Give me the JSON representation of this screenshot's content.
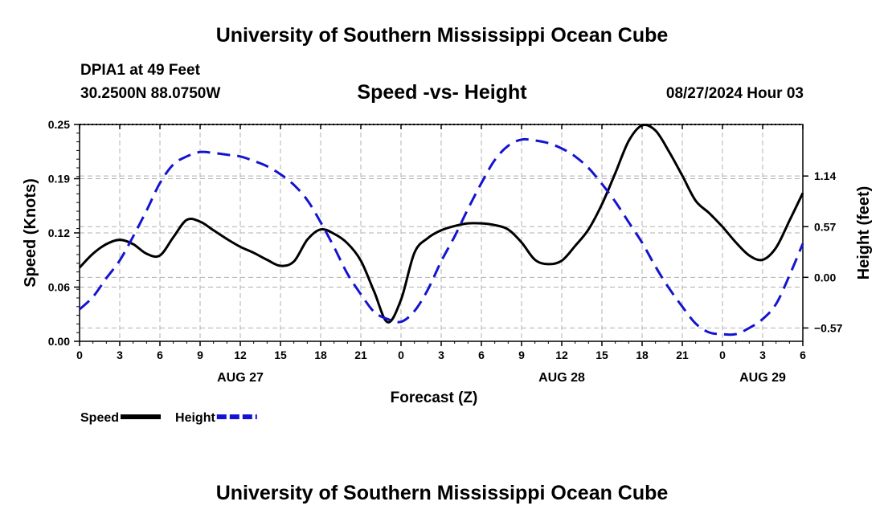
{
  "header": {
    "title_top": "University of Southern Mississippi Ocean Cube",
    "station": "DPIA1 at 49 Feet",
    "coords": "30.2500N  88.0750W",
    "subtitle": "Speed -vs- Height",
    "datetime": "08/27/2024 Hour 03",
    "title_bottom": "University of Southern Mississippi Ocean Cube"
  },
  "chart_data": {
    "type": "line",
    "title": "Speed -vs- Height",
    "xlabel": "Forecast (Z)",
    "ylabel": "Speed (Knots)",
    "y2label": "Height (feet)",
    "x_range_hours": [
      0,
      54
    ],
    "x_tick_labels": [
      "0",
      "3",
      "6",
      "9",
      "12",
      "15",
      "18",
      "21",
      "0",
      "3",
      "6",
      "9",
      "12",
      "15",
      "18",
      "21",
      "0",
      "3",
      "6"
    ],
    "date_labels": [
      {
        "hour": 12,
        "label": "AUG 27"
      },
      {
        "hour": 36,
        "label": "AUG 28"
      },
      {
        "hour": 51,
        "label": "AUG 29"
      }
    ],
    "ylim": [
      0,
      0.25
    ],
    "y_tick_labels": [
      "0.00",
      "0.06",
      "0.12",
      "0.19",
      "0.25"
    ],
    "y2lim": [
      -0.72,
      1.72
    ],
    "y2_ticks": [
      -0.57,
      0,
      0.57,
      1.14
    ],
    "y2_tick_labels": [
      "−0.57",
      "0.00",
      "0.57",
      "1.14"
    ],
    "grid": true,
    "legend_position": "bottom-left",
    "series": [
      {
        "name": "Speed",
        "axis": "left",
        "color": "#000000",
        "dash": "solid",
        "x": [
          0,
          1,
          2,
          3,
          4,
          5,
          6,
          7,
          8,
          9,
          10,
          11,
          12,
          13,
          14,
          15,
          16,
          17,
          18,
          19,
          20,
          21,
          22,
          23,
          24,
          25,
          26,
          27,
          28,
          29,
          30,
          31,
          32,
          33,
          34,
          35,
          36,
          37,
          38,
          39,
          40,
          41,
          42,
          43,
          44,
          45,
          46,
          47,
          48,
          49,
          50,
          51,
          52,
          53,
          54
        ],
        "values": [
          0.085,
          0.101,
          0.112,
          0.117,
          0.112,
          0.101,
          0.099,
          0.12,
          0.14,
          0.138,
          0.128,
          0.118,
          0.109,
          0.102,
          0.094,
          0.087,
          0.092,
          0.117,
          0.129,
          0.124,
          0.113,
          0.093,
          0.057,
          0.022,
          0.048,
          0.102,
          0.119,
          0.128,
          0.133,
          0.136,
          0.136,
          0.134,
          0.129,
          0.114,
          0.094,
          0.089,
          0.093,
          0.11,
          0.129,
          0.158,
          0.194,
          0.231,
          0.249,
          0.243,
          0.219,
          0.191,
          0.162,
          0.148,
          0.132,
          0.114,
          0.099,
          0.094,
          0.108,
          0.139,
          0.171
        ]
      },
      {
        "name": "Height",
        "axis": "right",
        "color": "#1414d0",
        "dash": "dashed",
        "x": [
          0,
          1,
          2,
          3,
          4,
          5,
          6,
          7,
          8,
          9,
          10,
          11,
          12,
          13,
          14,
          15,
          16,
          17,
          18,
          19,
          20,
          21,
          22,
          23,
          24,
          25,
          26,
          27,
          28,
          29,
          30,
          31,
          32,
          33,
          34,
          35,
          36,
          37,
          38,
          39,
          40,
          41,
          42,
          43,
          44,
          45,
          46,
          47,
          48,
          49,
          50,
          51,
          52,
          53,
          54
        ],
        "values": [
          -0.36,
          -0.22,
          -0.01,
          0.19,
          0.46,
          0.75,
          1.06,
          1.27,
          1.36,
          1.41,
          1.4,
          1.38,
          1.36,
          1.31,
          1.25,
          1.16,
          1.04,
          0.87,
          0.62,
          0.34,
          0.04,
          -0.19,
          -0.39,
          -0.47,
          -0.5,
          -0.38,
          -0.14,
          0.18,
          0.46,
          0.77,
          1.06,
          1.32,
          1.48,
          1.55,
          1.54,
          1.51,
          1.45,
          1.36,
          1.23,
          1.05,
          0.85,
          0.62,
          0.39,
          0.12,
          -0.12,
          -0.33,
          -0.52,
          -0.62,
          -0.64,
          -0.64,
          -0.57,
          -0.47,
          -0.3,
          0.02,
          0.38
        ]
      }
    ]
  }
}
